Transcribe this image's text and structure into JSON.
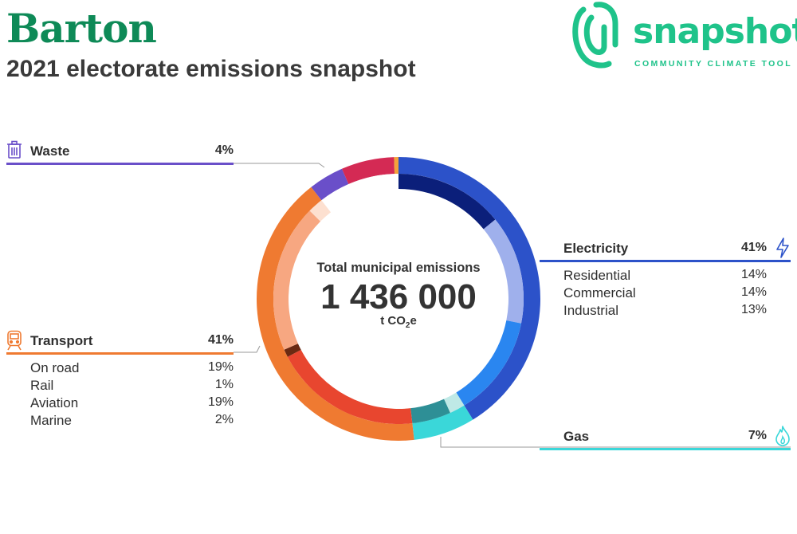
{
  "header": {
    "title": "Barton",
    "subtitle": "2021 electorate emissions snapshot"
  },
  "logo": {
    "word": "snapshot",
    "tagline": "COMMUNITY CLIMATE TOOL",
    "color": "#1fc38a"
  },
  "center": {
    "caption": "Total municipal emissions",
    "total": "1 436 000",
    "unit_prefix": "t CO",
    "unit_sub": "2",
    "unit_suffix": "e"
  },
  "colors": {
    "waste": "#6a4fc9",
    "transport": "#ef7a31",
    "electricity": "#2c52c9",
    "gas": "#3ad7d9"
  },
  "icons": {
    "waste": "trash-bin-icon",
    "transport": "train-icon",
    "electricity": "lightning-bolt-icon",
    "gas": "flame-icon"
  },
  "sectors": {
    "waste": {
      "name": "Waste",
      "pct": "4%"
    },
    "transport": {
      "name": "Transport",
      "pct": "41%",
      "rows": [
        {
          "label": "On road",
          "value": "19%"
        },
        {
          "label": "Rail",
          "value": "1%"
        },
        {
          "label": "Aviation",
          "value": "19%"
        },
        {
          "label": "Marine",
          "value": "2%"
        }
      ]
    },
    "electricity": {
      "name": "Electricity",
      "pct": "41%",
      "rows": [
        {
          "label": "Residential",
          "value": "14%"
        },
        {
          "label": "Commercial",
          "value": "14%"
        },
        {
          "label": "Industrial",
          "value": "13%"
        }
      ]
    },
    "gas": {
      "name": "Gas",
      "pct": "7%"
    }
  },
  "chart_data": {
    "type": "pie",
    "donut": true,
    "total": 1436000,
    "unit": "t CO2e",
    "outer_ring": [
      {
        "label": "Electricity",
        "value": 41,
        "color": "#2c52c9"
      },
      {
        "label": "Gas",
        "value": 7,
        "color": "#3ad7d9"
      },
      {
        "label": "Transport",
        "value": 41,
        "color": "#ef7a31"
      },
      {
        "label": "Waste",
        "value": 4,
        "color": "#6a4fc9"
      },
      {
        "value": 6,
        "color": "#d42a54"
      },
      {
        "value": 0.5,
        "color": "#f3a23b"
      }
    ],
    "inner_ring": [
      {
        "label": "Residential",
        "value": 14,
        "color": "#0b1f7a"
      },
      {
        "label": "Commercial",
        "value": 14,
        "color": "#9fb0ec"
      },
      {
        "label": "Industrial",
        "value": 13,
        "color": "#2a86f0"
      },
      {
        "value": 2,
        "color": "#bfe9e6"
      },
      {
        "value": 5,
        "color": "#2e8f96"
      },
      {
        "label": "On road",
        "value": 19,
        "color": "#e8462f"
      },
      {
        "label": "Rail",
        "value": 1,
        "color": "#6b2a12"
      },
      {
        "label": "Aviation",
        "value": 19,
        "color": "#f7a781"
      },
      {
        "label": "Marine",
        "value": 2,
        "color": "#fde0d0"
      },
      {
        "value": 4,
        "color": "#ffffff"
      },
      {
        "value": 6.5,
        "color": "#ffffff"
      }
    ]
  }
}
